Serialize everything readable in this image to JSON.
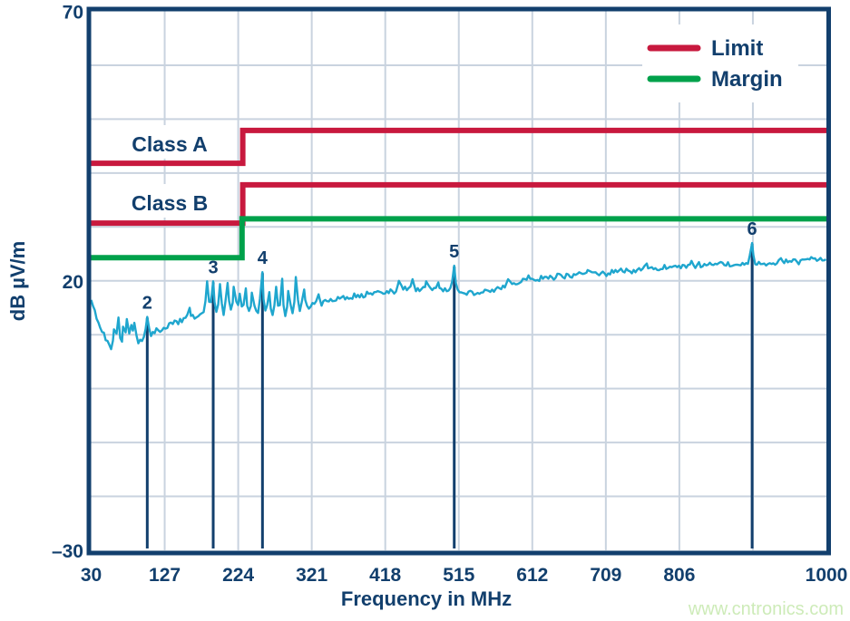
{
  "watermark": {
    "text": "www.cntronics.com"
  },
  "colors": {
    "navy": "#123F6D",
    "limit_red": "#C8193E",
    "margin_green": "#00A14B",
    "trace_cyan": "#1FA6CE",
    "gridline": "#C9D3DF",
    "watermark_green": "#CDEBB8"
  },
  "chart_data": {
    "type": "line",
    "title": "",
    "xlabel": "Frequency in MHz",
    "ylabel": "dB µV/m",
    "xlim": [
      30,
      1000
    ],
    "ylim": [
      -30,
      70
    ],
    "grid": true,
    "x_gridlines_mhz": [
      127,
      224,
      321,
      418,
      515,
      612,
      709,
      806,
      903
    ],
    "y_gridlines_db": [
      60,
      50,
      40,
      30,
      20,
      10,
      0,
      -10,
      -20
    ],
    "x_tick_labels": [
      {
        "mhz": 30,
        "label": "30"
      },
      {
        "mhz": 127,
        "label": "127"
      },
      {
        "mhz": 224,
        "label": "224"
      },
      {
        "mhz": 321,
        "label": "321"
      },
      {
        "mhz": 418,
        "label": "418"
      },
      {
        "mhz": 515,
        "label": "515"
      },
      {
        "mhz": 612,
        "label": "612"
      },
      {
        "mhz": 709,
        "label": "709"
      },
      {
        "mhz": 806,
        "label": "806"
      },
      {
        "mhz": 1000,
        "label": "1000"
      }
    ],
    "y_tick_labels": [
      {
        "db": 70,
        "label": "70"
      },
      {
        "db": 20,
        "label": "20"
      },
      {
        "db": -30,
        "label": "–30"
      }
    ],
    "legend": {
      "position": "top-right",
      "entries": [
        {
          "name": "limit",
          "label": "Limit",
          "color_key": "limit_red"
        },
        {
          "name": "margin",
          "label": "Margin",
          "color_key": "margin_green"
        }
      ]
    },
    "limit_lines": [
      {
        "name": "class-a-limit",
        "class_label": "Class A",
        "color_key": "limit_red",
        "step_mhz": 230,
        "db_before": 41.8,
        "db_after": 47.9
      },
      {
        "name": "class-b-limit",
        "class_label": "Class B",
        "color_key": "limit_red",
        "step_mhz": 230,
        "db_before": 30.7,
        "db_after": 37.8
      },
      {
        "name": "margin-line",
        "class_label": "",
        "color_key": "margin_green",
        "step_mhz": 229,
        "db_before": 24.3,
        "db_after": 31.5
      }
    ],
    "markers": [
      {
        "label": "2",
        "mhz": 104,
        "db_peak": 13.3
      },
      {
        "label": "3",
        "mhz": 191,
        "db_peak": 19.9
      },
      {
        "label": "4",
        "mhz": 256,
        "db_peak": 21.6
      },
      {
        "label": "5",
        "mhz": 509,
        "db_peak": 22.8
      },
      {
        "label": "6",
        "mhz": 902,
        "db_peak": 27.0
      }
    ],
    "trace": {
      "name": "measured-emissions",
      "color_key": "trace_cyan",
      "baseline_points": [
        [
          30,
          16.6
        ],
        [
          34,
          14.6
        ],
        [
          41,
          11.9
        ],
        [
          49,
          9.2
        ],
        [
          56,
          7.7
        ],
        [
          62,
          7.2
        ],
        [
          65,
          8.0
        ],
        [
          70,
          7.6
        ],
        [
          75,
          8.3
        ],
        [
          81,
          7.8
        ],
        [
          87,
          9.0
        ],
        [
          94,
          8.6
        ],
        [
          99,
          9.5
        ],
        [
          107,
          9.9
        ],
        [
          113,
          10.2
        ],
        [
          121,
          10.8
        ],
        [
          128,
          11.2
        ],
        [
          135,
          11.8
        ],
        [
          142,
          12.2
        ],
        [
          149,
          12.6
        ],
        [
          156,
          13.0
        ],
        [
          164,
          13.3
        ],
        [
          171,
          13.5
        ],
        [
          178,
          13.9
        ],
        [
          185,
          14.2
        ],
        [
          193,
          13.9
        ],
        [
          199,
          13.8
        ],
        [
          207,
          14.1
        ],
        [
          214,
          14.2
        ],
        [
          221,
          14.3
        ],
        [
          228,
          14.3
        ],
        [
          235,
          14.1
        ],
        [
          242,
          14.2
        ],
        [
          250,
          14.1
        ],
        [
          257,
          14.2
        ],
        [
          263,
          13.9
        ],
        [
          269,
          13.5
        ],
        [
          275,
          13.4
        ],
        [
          281,
          13.3
        ],
        [
          287,
          13.6
        ],
        [
          293,
          13.8
        ],
        [
          300,
          14.2
        ],
        [
          307,
          14.7
        ],
        [
          314,
          15.1
        ],
        [
          321,
          15.3
        ],
        [
          329,
          15.7
        ],
        [
          336,
          16.0
        ],
        [
          344,
          16.3
        ],
        [
          353,
          16.5
        ],
        [
          361,
          16.8
        ],
        [
          369,
          17.0
        ],
        [
          380,
          17.2
        ],
        [
          388,
          17.3
        ],
        [
          400,
          17.5
        ],
        [
          412,
          17.8
        ],
        [
          424,
          18.0
        ],
        [
          436,
          18.3
        ],
        [
          448,
          18.5
        ],
        [
          460,
          18.6
        ],
        [
          472,
          18.6
        ],
        [
          484,
          18.5
        ],
        [
          496,
          18.3
        ],
        [
          502,
          18.2
        ],
        [
          509,
          18.0
        ],
        [
          520,
          17.8
        ],
        [
          532,
          17.8
        ],
        [
          544,
          17.9
        ],
        [
          556,
          18.2
        ],
        [
          568,
          18.5
        ],
        [
          580,
          19.0
        ],
        [
          592,
          19.5
        ],
        [
          604,
          20.0
        ],
        [
          616,
          20.3
        ],
        [
          628,
          20.5
        ],
        [
          640,
          20.7
        ],
        [
          652,
          20.9
        ],
        [
          664,
          21.0
        ],
        [
          676,
          21.1
        ],
        [
          688,
          21.3
        ],
        [
          700,
          21.4
        ],
        [
          712,
          21.5
        ],
        [
          724,
          21.7
        ],
        [
          736,
          21.8
        ],
        [
          748,
          21.9
        ],
        [
          760,
          22.1
        ],
        [
          772,
          22.2
        ],
        [
          784,
          22.4
        ],
        [
          796,
          22.5
        ],
        [
          808,
          22.6
        ],
        [
          820,
          22.7
        ],
        [
          832,
          22.9
        ],
        [
          844,
          23.0
        ],
        [
          856,
          23.1
        ],
        [
          868,
          23.2
        ],
        [
          880,
          23.1
        ],
        [
          892,
          23.3
        ],
        [
          902,
          23.4
        ],
        [
          912,
          23.2
        ],
        [
          924,
          23.3
        ],
        [
          936,
          23.5
        ],
        [
          950,
          23.4
        ],
        [
          962,
          23.6
        ],
        [
          975,
          23.8
        ],
        [
          988,
          23.9
        ],
        [
          1000,
          24.0
        ]
      ],
      "spikes": [
        [
          60,
          11.0
        ],
        [
          66,
          13.2
        ],
        [
          72,
          11.5
        ],
        [
          77,
          12.9
        ],
        [
          83,
          11.8
        ],
        [
          87,
          12.2
        ],
        [
          104,
          13.3
        ],
        [
          116,
          11.2
        ],
        [
          160,
          15.0
        ],
        [
          183,
          19.9
        ],
        [
          191,
          19.9
        ],
        [
          200,
          19.4
        ],
        [
          210,
          19.6
        ],
        [
          218,
          18.9
        ],
        [
          226,
          17.6
        ],
        [
          234,
          18.6
        ],
        [
          242,
          17.8
        ],
        [
          256,
          21.6
        ],
        [
          265,
          17.9
        ],
        [
          274,
          18.9
        ],
        [
          282,
          20.4
        ],
        [
          290,
          18.1
        ],
        [
          300,
          20.7
        ],
        [
          311,
          18.4
        ],
        [
          330,
          17.5
        ],
        [
          436,
          20.0
        ],
        [
          454,
          20.3
        ],
        [
          472,
          19.9
        ],
        [
          488,
          19.7
        ],
        [
          509,
          22.8
        ],
        [
          580,
          20.3
        ],
        [
          607,
          21.0
        ],
        [
          685,
          22.0
        ],
        [
          763,
          23.2
        ],
        [
          822,
          23.7
        ],
        [
          902,
          27.0
        ],
        [
          940,
          24.2
        ],
        [
          980,
          24.4
        ]
      ]
    }
  }
}
